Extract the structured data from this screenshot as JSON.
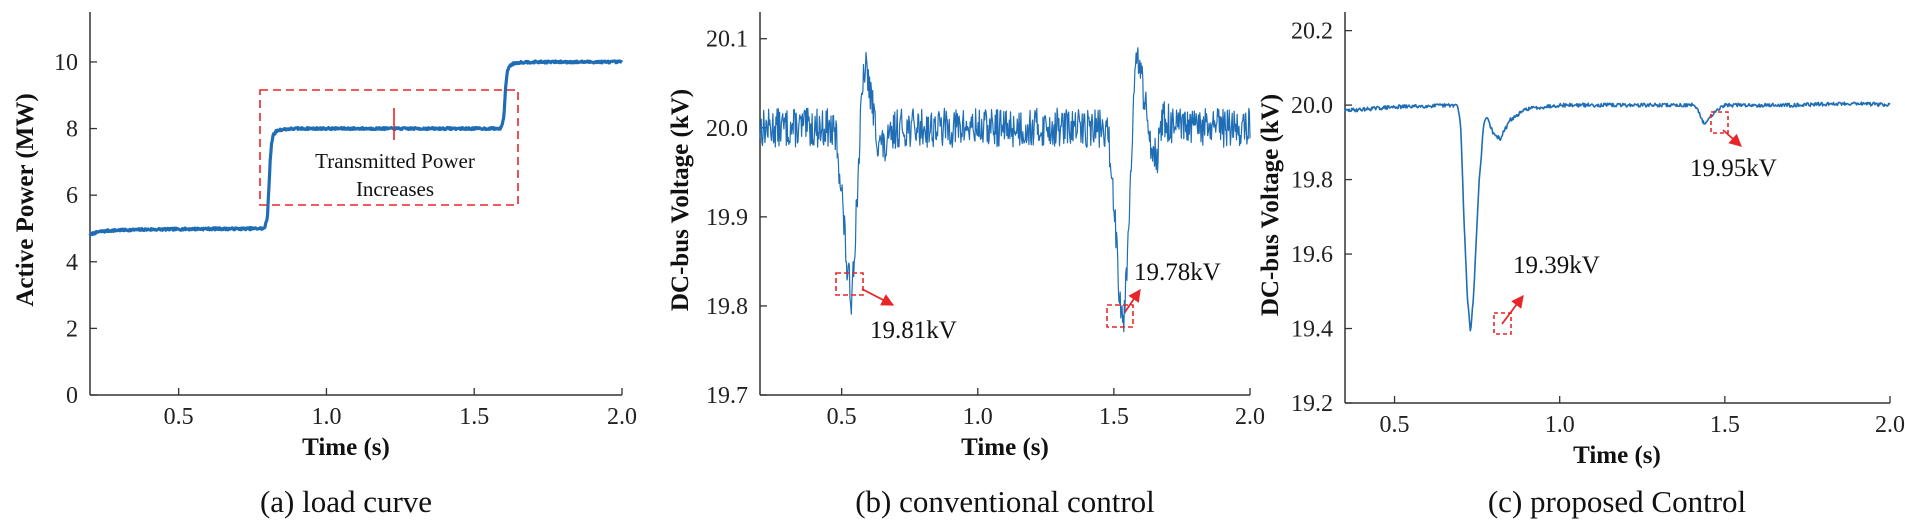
{
  "colors": {
    "line": "#1f6db4",
    "annotation": "#e8262a",
    "axis": "#333333"
  },
  "chart_data": [
    {
      "id": "a",
      "type": "line",
      "caption": "(a) load curve",
      "xlabel": "Time (s)",
      "ylabel": "Active Power (MW)",
      "xlim": [
        0.2,
        2.0
      ],
      "ylim": [
        0,
        11.5
      ],
      "xticks": [
        0.5,
        1.0,
        1.5,
        2.0
      ],
      "xtick_labels": [
        "0.5",
        "1.0",
        "1.5",
        "2.0"
      ],
      "yticks": [
        0,
        2,
        4,
        6,
        8,
        10
      ],
      "ytick_labels": [
        "0",
        "2",
        "4",
        "6",
        "8",
        "10"
      ],
      "series": [
        {
          "name": "Active Power",
          "x": [
            0.2,
            0.21,
            0.23,
            0.26,
            0.3,
            0.4,
            0.5,
            0.6,
            0.7,
            0.79,
            0.8,
            0.805,
            0.81,
            0.815,
            0.82,
            0.83,
            0.84,
            0.86,
            0.9,
            1.0,
            1.2,
            1.4,
            1.59,
            1.6,
            1.605,
            1.61,
            1.615,
            1.62,
            1.63,
            1.64,
            1.66,
            1.7,
            1.8,
            2.0
          ],
          "y": [
            4.8,
            4.85,
            4.9,
            4.93,
            4.95,
            4.97,
            4.98,
            4.99,
            4.99,
            5.0,
            5.3,
            6.2,
            7.1,
            7.6,
            7.8,
            7.92,
            7.96,
            7.98,
            8.0,
            8.0,
            8.0,
            8.0,
            8.0,
            8.3,
            9.1,
            9.6,
            9.8,
            9.88,
            9.94,
            9.97,
            9.99,
            10.0,
            10.0,
            10.0
          ],
          "noise": 0.03
        }
      ],
      "annotations": [
        {
          "text": "Transmitted Power",
          "line2": "Increases"
        }
      ]
    },
    {
      "id": "b",
      "type": "line",
      "caption": "(b) conventional control",
      "xlabel": "Time (s)",
      "ylabel": "DC-bus Voltage (kV)",
      "xlim": [
        0.2,
        2.0
      ],
      "ylim": [
        19.7,
        20.13
      ],
      "xticks": [
        0.5,
        1.0,
        1.5,
        2.0
      ],
      "xtick_labels": [
        "0.5",
        "1.0",
        "1.5",
        "2.0"
      ],
      "yticks": [
        19.7,
        19.8,
        19.9,
        20.0,
        20.1
      ],
      "ytick_labels": [
        "19.7",
        "19.8",
        "19.9",
        "20.0",
        "20.1"
      ],
      "series": [
        {
          "name": "DC-bus Voltage",
          "x": [
            0.2,
            0.45,
            0.48,
            0.5,
            0.52,
            0.535,
            0.55,
            0.57,
            0.585,
            0.6,
            0.63,
            0.66,
            0.7,
            1.45,
            1.48,
            1.5,
            1.52,
            1.535,
            1.55,
            1.57,
            1.585,
            1.6,
            1.63,
            1.66,
            1.68,
            1.72,
            2.0
          ],
          "y": [
            20.0,
            20.0,
            19.99,
            19.93,
            19.84,
            19.81,
            19.88,
            20.01,
            20.07,
            20.05,
            19.99,
            19.975,
            20.0,
            20.0,
            19.99,
            19.92,
            19.82,
            19.78,
            19.86,
            20.02,
            20.08,
            20.06,
            19.99,
            19.97,
            20.01,
            20.0,
            20.0
          ],
          "noise": 0.022
        }
      ],
      "annotations": [
        {
          "text": "19.81kV"
        },
        {
          "text": "19.78kV"
        }
      ]
    },
    {
      "id": "c",
      "type": "line",
      "caption": "(c) proposed Control",
      "xlabel": "Time (s)",
      "ylabel": "DC-bus Voltage (kV)",
      "xlim": [
        0.35,
        2.0
      ],
      "ylim": [
        19.2,
        20.25
      ],
      "xticks": [
        0.5,
        1.0,
        1.5,
        2.0
      ],
      "xtick_labels": [
        "0.5",
        "1.0",
        "1.5",
        "2.0"
      ],
      "yticks": [
        19.2,
        19.4,
        19.6,
        19.8,
        20.0,
        20.2
      ],
      "ytick_labels": [
        "19.2",
        "19.4",
        "19.6",
        "19.8",
        "20.0",
        "20.2"
      ],
      "series": [
        {
          "name": "DC-bus Voltage",
          "x": [
            0.35,
            0.5,
            0.69,
            0.7,
            0.71,
            0.72,
            0.73,
            0.74,
            0.755,
            0.77,
            0.78,
            0.8,
            0.82,
            0.85,
            0.9,
            1.0,
            1.2,
            1.4,
            1.42,
            1.43,
            1.44,
            1.45,
            1.47,
            1.5,
            1.7,
            1.9,
            2.0
          ],
          "y": [
            19.985,
            19.995,
            20.0,
            19.95,
            19.7,
            19.49,
            19.39,
            19.5,
            19.78,
            19.95,
            19.97,
            19.92,
            19.91,
            19.96,
            19.99,
            20.0,
            20.0,
            20.0,
            19.985,
            19.96,
            19.95,
            19.96,
            19.985,
            20.0,
            20.0,
            20.005,
            20.0
          ],
          "noise": 0.005
        }
      ],
      "annotations": [
        {
          "text": "19.39kV"
        },
        {
          "text": "19.95kV"
        }
      ]
    }
  ]
}
